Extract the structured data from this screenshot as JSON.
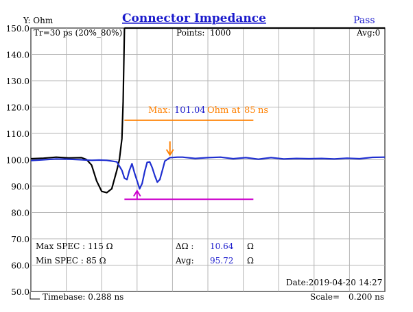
{
  "header": {
    "y_unit_label": "Y: Ohm",
    "title": "Connector  Impedance",
    "status": "Pass"
  },
  "info": {
    "rise_time": "Tr=30  ps (20%_80%)",
    "points_label": "Points:",
    "points_value": "1000",
    "avg_count": "Avg:0"
  },
  "markers": {
    "max_prefix": "Max:",
    "max_value": "101.04",
    "max_suffix": "Ohm at",
    "max_time": "85",
    "max_time_unit": "ns"
  },
  "spec": {
    "max_spec": "Max SPEC : 115 Ω",
    "min_spec": "Min  SPEC : 85 Ω",
    "delta_label": "ΔΩ :",
    "delta_value": "10.64",
    "delta_unit": "Ω",
    "avg_label": "Avg:",
    "avg_value": "95.72",
    "avg_unit": "Ω"
  },
  "footer": {
    "date": "Date:2019-04-20 14:27",
    "timebase": "Timebase: 0.288  ns",
    "scale_label": "Scale=",
    "scale_value": "0.200 ns"
  },
  "colors": {
    "title": "#1a1acc",
    "status": "#1a1acc",
    "grid": "#b4b4b4",
    "frame": "#555555",
    "reference_trace": "#000000",
    "measured_trace": "#1f2fd0",
    "max_line": "#ff8000",
    "min_line": "#cc00cc",
    "value_text": "#1a1acc"
  },
  "chart_data": {
    "type": "line",
    "xlim": [
      0,
      1.4
    ],
    "ylim": [
      50,
      150
    ],
    "y_ticks": [
      "150.0",
      "140.0",
      "130.0",
      "120.0",
      "110.0",
      "100.0",
      "90.0",
      "80.0",
      "70.0",
      "60.0",
      "50.0"
    ],
    "x_divisions": 10,
    "grid": true,
    "series": [
      {
        "key": "reference",
        "color": "#000000",
        "points": [
          [
            0,
            100.4
          ],
          [
            0.05,
            100.6
          ],
          [
            0.1,
            101.0
          ],
          [
            0.15,
            100.7
          ],
          [
            0.2,
            100.8
          ],
          [
            0.22,
            100.1
          ],
          [
            0.24,
            98
          ],
          [
            0.26,
            92
          ],
          [
            0.28,
            88
          ],
          [
            0.3,
            87.5
          ],
          [
            0.32,
            89
          ],
          [
            0.34,
            96
          ],
          [
            0.35,
            100
          ],
          [
            0.36,
            108
          ],
          [
            0.365,
            122
          ],
          [
            0.37,
            150
          ]
        ]
      },
      {
        "key": "measured",
        "color": "#1f2fd0",
        "points": [
          [
            0,
            99.7
          ],
          [
            0.05,
            100.0
          ],
          [
            0.1,
            100.3
          ],
          [
            0.15,
            100.2
          ],
          [
            0.2,
            100.0
          ],
          [
            0.24,
            99.8
          ],
          [
            0.27,
            99.9
          ],
          [
            0.3,
            99.8
          ],
          [
            0.34,
            99.2
          ],
          [
            0.36,
            96
          ],
          [
            0.37,
            93
          ],
          [
            0.38,
            92.5
          ],
          [
            0.39,
            96
          ],
          [
            0.4,
            98.5
          ],
          [
            0.41,
            95
          ],
          [
            0.42,
            92
          ],
          [
            0.43,
            89
          ],
          [
            0.44,
            91
          ],
          [
            0.45,
            95.5
          ],
          [
            0.46,
            99
          ],
          [
            0.47,
            99.2
          ],
          [
            0.48,
            97
          ],
          [
            0.49,
            94
          ],
          [
            0.5,
            91.5
          ],
          [
            0.51,
            92.5
          ],
          [
            0.52,
            96
          ],
          [
            0.53,
            99.5
          ],
          [
            0.55,
            100.8
          ],
          [
            0.58,
            101.0
          ],
          [
            0.6,
            101.0
          ],
          [
            0.65,
            100.5
          ],
          [
            0.7,
            100.8
          ],
          [
            0.75,
            101.0
          ],
          [
            0.8,
            100.4
          ],
          [
            0.85,
            100.8
          ],
          [
            0.9,
            100.2
          ],
          [
            0.95,
            100.8
          ],
          [
            1.0,
            100.3
          ],
          [
            1.05,
            100.5
          ],
          [
            1.1,
            100.4
          ],
          [
            1.15,
            100.5
          ],
          [
            1.2,
            100.3
          ],
          [
            1.25,
            100.6
          ],
          [
            1.3,
            100.4
          ],
          [
            1.35,
            100.9
          ],
          [
            1.4,
            101.0
          ]
        ]
      }
    ],
    "max_marker": {
      "y": 115,
      "x_start": 0.37,
      "x_end": 0.88,
      "arrow_x": 0.55,
      "arrow_y": 101.04
    },
    "min_marker": {
      "y": 85,
      "x_start": 0.37,
      "x_end": 0.88,
      "arrow_x": 0.42,
      "arrow_y": 89
    }
  }
}
